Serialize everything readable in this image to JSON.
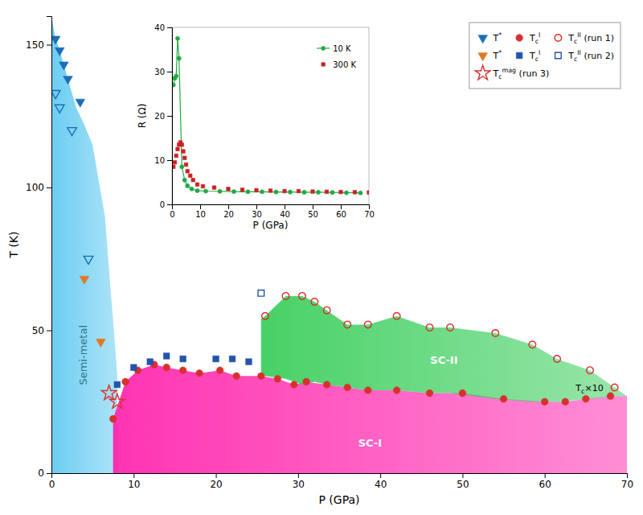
{
  "chart_data": [
    {
      "type": "scatter",
      "xlabel": "P (GPa)",
      "ylabel": "T (K)",
      "xlim": [
        0,
        70
      ],
      "ylim": [
        0,
        160
      ],
      "xticks": [
        0,
        10,
        20,
        30,
        40,
        50,
        60,
        70
      ],
      "yticks": [
        0,
        50,
        100,
        150
      ],
      "grid": false,
      "legend": "upper right",
      "annotations": [
        "Tc×10"
      ],
      "series": [
        {
          "name": "Semi-metal",
          "type": "area",
          "color": "#5bc8f0",
          "x": [
            0,
            0.5,
            1.0,
            1.5,
            2.0,
            2.5,
            3.0,
            4.0,
            5.0,
            6.5,
            8.0
          ],
          "values": [
            160,
            152,
            148,
            143,
            138,
            133,
            128,
            122,
            115,
            90,
            35
          ]
        },
        {
          "name": "SC-I",
          "type": "area",
          "color": "#ff1daa",
          "x": [
            7.5,
            9.0,
            10.5,
            12.5,
            14.0,
            16.0,
            18.0,
            20.5,
            22.5,
            25.5,
            27.5,
            29.5,
            31.0,
            33.5,
            36.0,
            38.5,
            42.0,
            46.0,
            50.0,
            55.0,
            60.0,
            62.5,
            65.0,
            68.0,
            70.0
          ],
          "values": [
            19,
            32,
            36,
            38,
            37,
            36,
            35,
            36,
            34,
            34,
            33,
            31,
            32,
            31,
            30,
            29,
            29,
            28,
            28,
            26,
            25,
            25,
            26,
            27,
            27
          ]
        },
        {
          "name": "SC-II",
          "type": "area",
          "color": "#33cc55",
          "x": [
            25.5,
            26.0,
            28.5,
            30.5,
            32.0,
            33.5,
            36.0,
            38.5,
            42.0,
            46.0,
            48.5,
            54.0,
            58.5,
            61.5,
            65.5,
            68.5,
            70.0
          ],
          "values": [
            54,
            55,
            62,
            62,
            60,
            57,
            52,
            52,
            55,
            51,
            51,
            49,
            45,
            40,
            36,
            30,
            27
          ],
          "lower": [
            34,
            34,
            33,
            31,
            32,
            31,
            30,
            29,
            29,
            28,
            28,
            26,
            25,
            25,
            26,
            27,
            27
          ]
        },
        {
          "name": "T*",
          "type": "scatter",
          "marker": "triangle-down",
          "color": "#1a6eb8",
          "x": [
            0.5,
            1.0,
            1.5,
            2.0,
            3.5
          ],
          "values": [
            152,
            148,
            143,
            138,
            130
          ]
        },
        {
          "type": "scatter",
          "marker": "triangle-down-open",
          "color": "#1a6eb8",
          "x": [
            0.5,
            1.0,
            2.5,
            4.5
          ],
          "values": [
            133,
            128,
            120,
            75
          ]
        },
        {
          "name": "TcI",
          "type": "scatter",
          "marker": "circle",
          "color": "#d9302e",
          "x": [
            7.5,
            9.0,
            10.5,
            12.5,
            14.0,
            16.0,
            18.0,
            20.5,
            22.5,
            25.5,
            27.5,
            29.5,
            31.0,
            33.5,
            36.0,
            38.5,
            42.0,
            46.0,
            50.0,
            55.0,
            60.0,
            62.5,
            65.0,
            68.0
          ],
          "values": [
            19,
            32,
            36,
            38,
            37,
            36,
            35,
            36,
            34,
            34,
            33,
            31,
            32,
            31,
            30,
            29,
            29,
            28,
            28,
            26,
            25,
            25,
            26,
            27
          ]
        },
        {
          "name": "TcII (run 1)",
          "type": "scatter",
          "marker": "circle-open",
          "color": "#d9302e",
          "x": [
            26.0,
            28.5,
            30.5,
            32.0,
            33.5,
            36.0,
            38.5,
            42.0,
            46.0,
            48.5,
            54.0,
            58.5,
            61.5,
            65.5,
            68.5
          ],
          "values": [
            55,
            62,
            62,
            60,
            57,
            52,
            52,
            55,
            51,
            51,
            49,
            45,
            40,
            36,
            30
          ]
        },
        {
          "name": "T*",
          "type": "scatter",
          "marker": "triangle-down",
          "color": "#e07820",
          "x": [
            4.0,
            6.0
          ],
          "values": [
            68,
            46
          ]
        },
        {
          "name": "TcI",
          "type": "scatter",
          "marker": "square",
          "color": "#2255aa",
          "x": [
            8.0,
            10.0,
            12.0,
            14.0,
            16.0,
            20.0,
            22.0,
            24.0
          ],
          "values": [
            31,
            37,
            39,
            41,
            40,
            40,
            40,
            39
          ]
        },
        {
          "name": "TcII (run 2)",
          "type": "scatter",
          "marker": "square-open",
          "color": "#2255aa",
          "x": [
            25.5
          ],
          "values": [
            63
          ]
        },
        {
          "name": "Tcmag (run 3)",
          "type": "scatter",
          "marker": "star-open",
          "color": "#d9302e",
          "x": [
            7.0,
            8.0
          ],
          "values": [
            28,
            25
          ]
        }
      ]
    },
    {
      "type": "line",
      "xlabel": "P (GPa)",
      "ylabel": "R (Ω)",
      "xlim": [
        0,
        70
      ],
      "ylim": [
        0,
        40
      ],
      "xticks": [
        0,
        10,
        20,
        30,
        40,
        50,
        60,
        70
      ],
      "yticks": [
        0,
        10,
        20,
        30,
        40
      ],
      "grid": false,
      "legend": "upper right",
      "series": [
        {
          "name": "10 K",
          "type": "line",
          "marker": "circle",
          "color": "#22aa44",
          "x": [
            0.5,
            1.0,
            1.5,
            2.0,
            2.5,
            3.5,
            4.5,
            5.5,
            7.0,
            9.0,
            12.0,
            17.0,
            22.0,
            27.0,
            32.0,
            37.0,
            42.0,
            47.0,
            52.0,
            57.0,
            62.0,
            67.0
          ],
          "values": [
            27.0,
            28.5,
            29.0,
            37.5,
            33.0,
            8.5,
            5.5,
            4.2,
            3.5,
            3.1,
            3.0,
            2.95,
            2.9,
            2.85,
            2.85,
            2.8,
            2.8,
            2.75,
            2.75,
            2.7,
            2.65,
            2.6
          ]
        },
        {
          "name": "300 K",
          "type": "scatter",
          "marker": "square",
          "color": "#cc2222",
          "x": [
            0.5,
            1.0,
            1.5,
            2.0,
            2.5,
            3.0,
            3.5,
            4.0,
            4.5,
            5.0,
            5.5,
            6.5,
            7.5,
            9.0,
            11.0,
            15.0,
            20.0,
            25.0,
            30.0,
            35.0,
            40.0,
            45.0,
            50.0,
            55.0,
            60.0,
            65.0,
            70.0
          ],
          "values": [
            8.5,
            9.5,
            11.0,
            12.5,
            13.5,
            14.0,
            13.5,
            12.0,
            10.5,
            9.0,
            7.5,
            6.5,
            5.5,
            4.5,
            4.1,
            3.8,
            3.5,
            3.3,
            3.2,
            3.1,
            3.0,
            3.0,
            2.9,
            2.85,
            2.8,
            2.75,
            2.7
          ]
        }
      ]
    }
  ]
}
